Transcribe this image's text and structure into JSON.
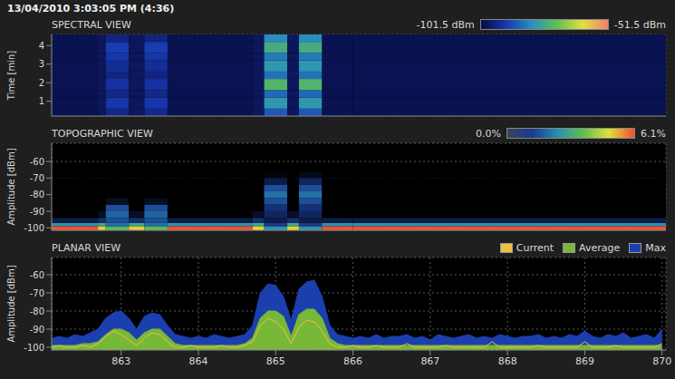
{
  "title": "13/04/2010 3:03:05 PM (4:36)",
  "chart_data": [
    {
      "type": "heatmap",
      "title": "SPECTRAL VIEW",
      "y_label": "Time [min]",
      "xlim": [
        862.1,
        870.05
      ],
      "xticks": [
        863,
        864,
        865,
        866,
        867,
        868,
        869,
        870
      ],
      "ylim": [
        0.2,
        4.6
      ],
      "yticks": [
        1,
        2,
        3,
        4
      ],
      "grid": true,
      "tick_labels": "y",
      "x_edges": [
        862.1,
        862.7,
        862.8,
        863.1,
        863.3,
        863.6,
        864.7,
        864.85,
        865.15,
        865.3,
        865.6,
        866,
        870.05
      ],
      "y_edges": [
        0.2,
        0.6,
        1.2,
        1.6,
        2.2,
        2.6,
        3.2,
        3.6,
        4.2,
        4.6
      ],
      "cells": [
        [
          -100,
          -99,
          -95,
          -99,
          -95,
          -100,
          -99,
          -88,
          -99,
          -88,
          -100,
          -100
        ],
        [
          -100,
          -99,
          -92,
          -99,
          -92,
          -100,
          -99,
          -80,
          -99,
          -80,
          -100,
          -100
        ],
        [
          -100,
          -99,
          -95,
          -99,
          -95,
          -100,
          -99,
          -86,
          -99,
          -86,
          -100,
          -100
        ],
        [
          -100,
          -99,
          -93,
          -99,
          -93,
          -100,
          -99,
          -74,
          -99,
          -74,
          -100,
          -100
        ],
        [
          -100,
          -99,
          -96,
          -99,
          -96,
          -100,
          -99,
          -85,
          -99,
          -85,
          -100,
          -100
        ],
        [
          -100,
          -99,
          -94,
          -99,
          -94,
          -100,
          -99,
          -80,
          -99,
          -80,
          -100,
          -100
        ],
        [
          -100,
          -99,
          -92,
          -99,
          -92,
          -100,
          -99,
          -84,
          -99,
          -84,
          -100,
          -100
        ],
        [
          -100,
          -99,
          -91,
          -99,
          -91,
          -100,
          -99,
          -76,
          -99,
          -76,
          -100,
          -100
        ],
        [
          -100,
          -99,
          -96,
          -99,
          -96,
          -100,
          -99,
          -82,
          -99,
          -82,
          -100,
          -100
        ]
      ],
      "colorbar": {
        "range": [
          -101.5,
          -51.5
        ],
        "ticks": [
          {
            "value": -101.5,
            "label": "-101.5 dBm"
          },
          {
            "value": -51.5,
            "label": "-51.5 dBm"
          }
        ]
      }
    },
    {
      "type": "heatmap",
      "title": "TOPOGRAPHIC VIEW",
      "y_label": "Amplitude [dBm]",
      "xlim": [
        862.1,
        870.05
      ],
      "xticks": [
        863,
        864,
        865,
        866,
        867,
        868,
        869,
        870
      ],
      "ylim": [
        -101.5,
        -49
      ],
      "yticks": [
        -60,
        -70,
        -80,
        -90,
        -100
      ],
      "grid": true,
      "tick_labels": "y",
      "x_edges": [
        862.1,
        862.7,
        862.8,
        863.1,
        863.3,
        863.6,
        864.7,
        864.85,
        865.15,
        865.3,
        865.6,
        866,
        870.05
      ],
      "y_edges": [
        -101.5,
        -99,
        -97,
        -94,
        -90,
        -86,
        -82,
        -78,
        -74,
        -70,
        -66,
        -62
      ],
      "cells": [
        [
          6.1,
          5.0,
          3.5,
          5.0,
          3.5,
          6.1,
          5.0,
          2.5,
          5.0,
          2.5,
          6.1,
          6.1
        ],
        [
          2.5,
          3.0,
          2.0,
          3.0,
          2.0,
          2.5,
          3.0,
          1.2,
          3.0,
          1.2,
          2.5,
          2.5
        ],
        [
          0.6,
          1.0,
          1.5,
          1.0,
          1.5,
          0.6,
          1.0,
          0.6,
          1.0,
          0.6,
          0.6,
          0.6
        ],
        [
          0,
          0.3,
          1.8,
          0.3,
          1.8,
          0,
          0.3,
          0.8,
          0.3,
          0.8,
          0,
          0
        ],
        [
          0,
          0,
          1.5,
          0,
          1.5,
          0,
          0,
          1.0,
          0,
          1.0,
          0,
          0
        ],
        [
          0,
          0,
          0.3,
          0,
          0.3,
          0,
          0,
          1.5,
          0,
          1.5,
          0,
          0
        ],
        [
          0,
          0,
          0,
          0,
          0,
          0,
          0,
          2.0,
          0,
          2.0,
          0,
          0
        ],
        [
          0,
          0,
          0,
          0,
          0,
          0,
          0,
          1.5,
          0,
          1.5,
          0,
          0
        ],
        [
          0,
          0,
          0,
          0,
          0,
          0,
          0,
          0.6,
          0,
          0.8,
          0,
          0
        ],
        [
          0,
          0,
          0,
          0,
          0,
          0,
          0,
          0.1,
          0,
          0.2,
          0,
          0
        ],
        [
          0,
          0,
          0,
          0,
          0,
          0,
          0,
          0,
          0,
          0,
          0,
          0
        ]
      ],
      "colorbar": {
        "range": [
          0,
          6.1
        ],
        "ticks": [
          {
            "value": 0,
            "label": "0.0%"
          },
          {
            "value": 6.1,
            "label": "6.1%"
          }
        ]
      }
    },
    {
      "type": "area",
      "title": "PLANAR VIEW",
      "y_label": "Amplitude [dBm]",
      "xlim": [
        862.1,
        870.05
      ],
      "xticks": [
        863,
        864,
        865,
        866,
        867,
        868,
        869,
        870
      ],
      "ylim": [
        -101.5,
        -50.5
      ],
      "yticks": [
        -60,
        -70,
        -80,
        -90,
        -100
      ],
      "grid": true,
      "legend": "top-right",
      "x": [
        862.1,
        862.2,
        862.3,
        862.4,
        862.5,
        862.6,
        862.7,
        862.8,
        862.9,
        863,
        863.1,
        863.2,
        863.3,
        863.4,
        863.5,
        863.6,
        863.7,
        863.8,
        863.9,
        864,
        864.1,
        864.2,
        864.3,
        864.4,
        864.5,
        864.6,
        864.7,
        864.8,
        864.9,
        865,
        865.1,
        865.2,
        865.3,
        865.4,
        865.5,
        865.6,
        865.7,
        865.8,
        865.9,
        866,
        866.1,
        866.2,
        866.3,
        866.4,
        866.5,
        866.6,
        866.7,
        866.8,
        866.9,
        867,
        867.1,
        867.2,
        867.3,
        867.4,
        867.5,
        867.6,
        867.7,
        867.8,
        867.9,
        868,
        868.1,
        868.2,
        868.3,
        868.4,
        868.5,
        868.6,
        868.7,
        868.8,
        868.9,
        869,
        869.1,
        869.2,
        869.3,
        869.4,
        869.5,
        869.6,
        869.7,
        869.8,
        869.9,
        870
      ],
      "series": [
        {
          "name": "Current",
          "color": "#f0c040",
          "type": "line",
          "values": [
            -100,
            -99,
            -100,
            -100,
            -99,
            -100,
            -98,
            -94,
            -91,
            -93,
            -96,
            -99,
            -95,
            -92,
            -93,
            -97,
            -100,
            -100,
            -99,
            -100,
            -100,
            -100,
            -99,
            -100,
            -100,
            -99,
            -97,
            -88,
            -84,
            -86,
            -90,
            -98,
            -89,
            -85,
            -86,
            -91,
            -98,
            -100,
            -100,
            -99,
            -100,
            -100,
            -99,
            -100,
            -100,
            -100,
            -98,
            -100,
            -100,
            -100,
            -100,
            -99,
            -100,
            -100,
            -100,
            -100,
            -100,
            -97,
            -100,
            -100,
            -100,
            -100,
            -100,
            -99,
            -100,
            -100,
            -100,
            -100,
            -100,
            -97,
            -100,
            -100,
            -100,
            -99,
            -100,
            -100,
            -100,
            -100,
            -100,
            -98
          ]
        },
        {
          "name": "Average",
          "color": "#78b838",
          "type": "area",
          "values": [
            -99,
            -99,
            -99,
            -99,
            -98,
            -98,
            -97,
            -93,
            -90,
            -90,
            -92,
            -96,
            -92,
            -90,
            -90,
            -94,
            -98,
            -99,
            -99,
            -99,
            -99,
            -99,
            -99,
            -99,
            -99,
            -98,
            -95,
            -84,
            -80,
            -80,
            -83,
            -94,
            -82,
            -79,
            -79,
            -84,
            -95,
            -98,
            -99,
            -99,
            -99,
            -99,
            -99,
            -99,
            -99,
            -99,
            -99,
            -99,
            -99,
            -99,
            -99,
            -99,
            -99,
            -99,
            -99,
            -99,
            -99,
            -99,
            -99,
            -99,
            -99,
            -99,
            -99,
            -99,
            -99,
            -99,
            -99,
            -99,
            -99,
            -99,
            -99,
            -99,
            -99,
            -99,
            -99,
            -99,
            -99,
            -99,
            -99,
            -99
          ]
        },
        {
          "name": "Max",
          "color": "#1c3fae",
          "type": "area",
          "values": [
            -95,
            -94,
            -95,
            -93,
            -94,
            -92,
            -90,
            -84,
            -81,
            -80,
            -84,
            -90,
            -83,
            -81,
            -82,
            -88,
            -93,
            -94,
            -95,
            -94,
            -95,
            -93,
            -94,
            -95,
            -94,
            -93,
            -88,
            -70,
            -65,
            -66,
            -72,
            -85,
            -68,
            -64,
            -63,
            -72,
            -88,
            -93,
            -94,
            -95,
            -94,
            -95,
            -93,
            -95,
            -94,
            -94,
            -93,
            -95,
            -94,
            -96,
            -93,
            -94,
            -95,
            -94,
            -93,
            -95,
            -94,
            -95,
            -93,
            -94,
            -95,
            -94,
            -94,
            -93,
            -95,
            -94,
            -95,
            -93,
            -94,
            -91,
            -94,
            -95,
            -93,
            -94,
            -92,
            -95,
            -94,
            -93,
            -95,
            -90
          ]
        }
      ]
    }
  ]
}
